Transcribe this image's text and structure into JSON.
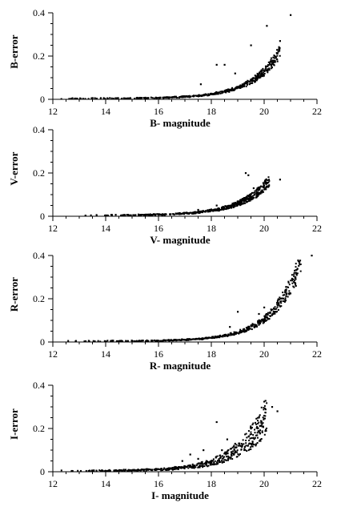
{
  "chart_data": [
    {
      "type": "scatter",
      "ylabel": "B-error",
      "xlabel": "B- magnitude",
      "xlim": [
        12,
        22
      ],
      "ylim": [
        0,
        0.4
      ],
      "xticks": [
        "12",
        "14",
        "16",
        "18",
        "20",
        "22"
      ],
      "yticks": [
        "0",
        "0.2",
        "0.4"
      ],
      "trend": {
        "a": 8e-05,
        "k": 0.92,
        "x0": 12.0,
        "spread": 0.15
      },
      "outliers": [
        [
          18.2,
          0.16
        ],
        [
          18.5,
          0.16
        ],
        [
          19.5,
          0.25
        ],
        [
          20.1,
          0.34
        ],
        [
          20.6,
          0.27
        ],
        [
          21.0,
          0.39
        ],
        [
          17.6,
          0.07
        ],
        [
          18.9,
          0.12
        ]
      ]
    },
    {
      "type": "scatter",
      "ylabel": "V-error",
      "xlabel": "V- magnitude",
      "xlim": [
        12,
        22
      ],
      "ylim": [
        0,
        0.4
      ],
      "xticks": [
        "12",
        "14",
        "16",
        "18",
        "20",
        "22"
      ],
      "yticks": [
        "0",
        "0.2",
        "0.4"
      ],
      "trend": {
        "a": 0.0001,
        "k": 0.9,
        "x0": 12.8,
        "spread": 0.18
      },
      "outliers": [
        [
          19.3,
          0.2
        ],
        [
          19.4,
          0.19
        ],
        [
          19.6,
          0.13
        ],
        [
          20.6,
          0.17
        ],
        [
          18.2,
          0.05
        ],
        [
          17.5,
          0.03
        ]
      ]
    },
    {
      "type": "scatter",
      "ylabel": "R-error",
      "xlabel": "R- magnitude",
      "xlim": [
        12,
        22
      ],
      "ylim": [
        0,
        0.4
      ],
      "xticks": [
        "12",
        "14",
        "16",
        "18",
        "20",
        "22"
      ],
      "yticks": [
        "0",
        "0.2",
        "0.4"
      ],
      "trend": {
        "a": 6e-05,
        "k": 0.93,
        "x0": 12.2,
        "spread": 0.15
      },
      "outliers": [
        [
          21.8,
          0.4
        ],
        [
          19.0,
          0.14
        ],
        [
          19.8,
          0.13
        ],
        [
          20.0,
          0.16
        ],
        [
          21.2,
          0.26
        ],
        [
          18.7,
          0.07
        ]
      ]
    },
    {
      "type": "scatter",
      "ylabel": "I-error",
      "xlabel": "I- magnitude",
      "xlim": [
        12,
        22
      ],
      "ylim": [
        0,
        0.4
      ],
      "xticks": [
        "12",
        "14",
        "16",
        "18",
        "20",
        "22"
      ],
      "yticks": [
        "0",
        "0.2",
        "0.4"
      ],
      "trend": {
        "a": 0.00018,
        "k": 0.9,
        "x0": 12.0,
        "spread": 0.35
      },
      "outliers": [
        [
          18.2,
          0.23
        ],
        [
          19.5,
          0.2
        ],
        [
          20.3,
          0.3
        ],
        [
          20.5,
          0.28
        ],
        [
          18.6,
          0.15
        ],
        [
          18.9,
          0.13
        ],
        [
          19.1,
          0.12
        ],
        [
          17.7,
          0.1
        ],
        [
          17.2,
          0.08
        ],
        [
          18.4,
          0.1
        ],
        [
          16.9,
          0.05
        ],
        [
          17.5,
          0.06
        ]
      ]
    }
  ]
}
